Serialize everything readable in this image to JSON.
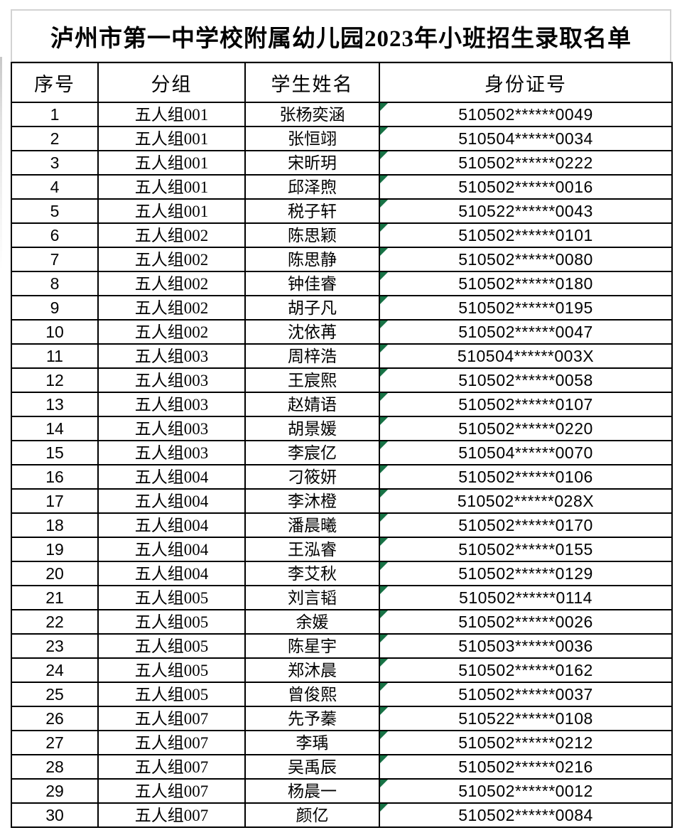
{
  "page": {
    "title": "泸州市第一中学校附属幼儿园2023年小班招生录取名单"
  },
  "colors": {
    "marker_green": "#177245",
    "table_border": "#000000",
    "title_border": "#d2d2d2"
  },
  "icons": {
    "id_cell_marker": "green-triangle-icon"
  },
  "table": {
    "headers": [
      "序号",
      "分组",
      "学生姓名",
      "身份证号"
    ],
    "rows": [
      {
        "no": "1",
        "group": "五人组001",
        "name": "张杨奕涵",
        "id_number": "510502******0049"
      },
      {
        "no": "2",
        "group": "五人组001",
        "name": "张恒翊",
        "id_number": "510504******0034"
      },
      {
        "no": "3",
        "group": "五人组001",
        "name": "宋昕玥",
        "id_number": "510502******0222"
      },
      {
        "no": "4",
        "group": "五人组001",
        "name": "邱泽煦",
        "id_number": "510502******0016"
      },
      {
        "no": "5",
        "group": "五人组001",
        "name": "税子轩",
        "id_number": "510522******0043"
      },
      {
        "no": "6",
        "group": "五人组002",
        "name": "陈思颖",
        "id_number": "510502******0101"
      },
      {
        "no": "7",
        "group": "五人组002",
        "name": "陈思静",
        "id_number": "510502******0080"
      },
      {
        "no": "8",
        "group": "五人组002",
        "name": "钟佳睿",
        "id_number": "510502******0180"
      },
      {
        "no": "9",
        "group": "五人组002",
        "name": "胡子凡",
        "id_number": "510502******0195"
      },
      {
        "no": "10",
        "group": "五人组002",
        "name": "沈依苒",
        "id_number": "510502******0047"
      },
      {
        "no": "11",
        "group": "五人组003",
        "name": "周梓浩",
        "id_number": "510504******003X"
      },
      {
        "no": "12",
        "group": "五人组003",
        "name": "王宸熙",
        "id_number": "510502******0058"
      },
      {
        "no": "13",
        "group": "五人组003",
        "name": "赵婧语",
        "id_number": "510502******0107"
      },
      {
        "no": "14",
        "group": "五人组003",
        "name": "胡景媛",
        "id_number": "510502******0220"
      },
      {
        "no": "15",
        "group": "五人组003",
        "name": "李宸亿",
        "id_number": "510504******0070"
      },
      {
        "no": "16",
        "group": "五人组004",
        "name": "刁筱妍",
        "id_number": "510502******0106"
      },
      {
        "no": "17",
        "group": "五人组004",
        "name": "李沐橙",
        "id_number": "510502******028X"
      },
      {
        "no": "18",
        "group": "五人组004",
        "name": "潘晨曦",
        "id_number": "510502******0170"
      },
      {
        "no": "19",
        "group": "五人组004",
        "name": "王泓睿",
        "id_number": "510502******0155"
      },
      {
        "no": "20",
        "group": "五人组004",
        "name": "李艾秋",
        "id_number": "510502******0129"
      },
      {
        "no": "21",
        "group": "五人组005",
        "name": "刘言韬",
        "id_number": "510502******0114"
      },
      {
        "no": "22",
        "group": "五人组005",
        "name": "余媛",
        "id_number": "510502******0026"
      },
      {
        "no": "23",
        "group": "五人组005",
        "name": "陈星宇",
        "id_number": "510503******0036"
      },
      {
        "no": "24",
        "group": "五人组005",
        "name": "郑沐晨",
        "id_number": "510502******0162"
      },
      {
        "no": "25",
        "group": "五人组005",
        "name": "曾俊熙",
        "id_number": "510502******0037"
      },
      {
        "no": "26",
        "group": "五人组007",
        "name": "先予蓁",
        "id_number": "510522******0108"
      },
      {
        "no": "27",
        "group": "五人组007",
        "name": "李瑀",
        "id_number": "510502******0212"
      },
      {
        "no": "28",
        "group": "五人组007",
        "name": "吴禹辰",
        "id_number": "510502******0216"
      },
      {
        "no": "29",
        "group": "五人组007",
        "name": "杨晨一",
        "id_number": "510502******0012"
      },
      {
        "no": "30",
        "group": "五人组007",
        "name": "颜亿",
        "id_number": "510502******0084"
      }
    ]
  }
}
